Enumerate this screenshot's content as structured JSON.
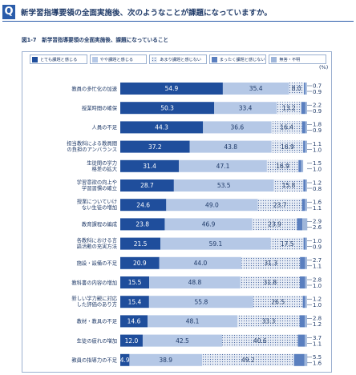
{
  "question": {
    "badge": "Q",
    "text": "新学習指導要領の全面実施後、次のようなことが課題になっていますか。"
  },
  "chart_data": {
    "type": "bar",
    "stacked": true,
    "orientation": "horizontal",
    "title": "図1-7　新学習指導要領の全面実施後、課題になっていること",
    "unit": "(%)",
    "xlim": [
      0,
      100
    ],
    "categories": [
      "教員の多忙化の加速",
      "授業時間の確保",
      "人員の不足",
      "担当教科による教員間の負担のアンバランス",
      "生徒間の学力格差の拡大",
      "学習意欲の向上や学習習慣の確立",
      "授業についていけない生徒の増加",
      "教育課程の編成",
      "各教科における言語活動の充実方法",
      "施設・設備の不足",
      "教科書の内容の増加",
      "新しい学力観に対応した評価のあり方",
      "教材・教具の不足",
      "生徒の疲れの増加",
      "教員の指導力の不足"
    ],
    "series": [
      {
        "name": "とても課題と感じる",
        "color": "#1f4e9c",
        "values": [
          54.9,
          50.3,
          44.3,
          37.2,
          31.4,
          28.7,
          24.6,
          23.8,
          21.5,
          20.9,
          15.5,
          15.4,
          14.6,
          12.0,
          4.9
        ]
      },
      {
        "name": "やや課題と感じる",
        "color": "#b5c8e6",
        "values": [
          35.4,
          33.4,
          36.6,
          43.8,
          47.1,
          53.5,
          49.0,
          46.9,
          59.1,
          44.0,
          48.8,
          55.8,
          48.1,
          42.5,
          38.9
        ]
      },
      {
        "name": "あまり課題と感じない",
        "color": "#dde5f1",
        "values": [
          8.0,
          13.2,
          16.4,
          16.9,
          16.9,
          15.8,
          23.7,
          23.9,
          17.5,
          31.3,
          31.8,
          26.5,
          33.3,
          40.6,
          49.2
        ]
      },
      {
        "name": "まったく課題と感じない",
        "color": "#5a7fbf",
        "values": [
          0.7,
          2.2,
          1.8,
          1.1,
          1.5,
          1.2,
          1.6,
          2.9,
          1.0,
          2.7,
          2.8,
          1.2,
          2.8,
          3.7,
          5.5
        ]
      },
      {
        "name": "無答・不明",
        "color": "#9fb6da",
        "values": [
          0.9,
          0.9,
          0.9,
          1.0,
          1.0,
          0.8,
          1.1,
          2.6,
          0.9,
          1.1,
          1.0,
          1.0,
          1.2,
          1.1,
          1.6
        ]
      }
    ]
  }
}
